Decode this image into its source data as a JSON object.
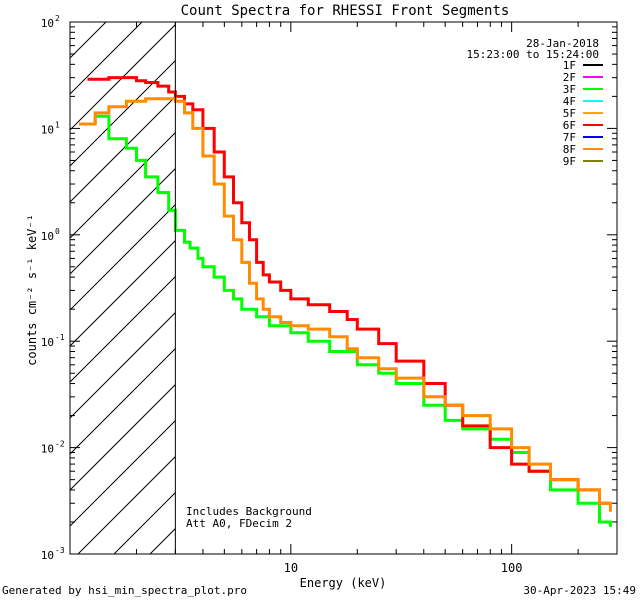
{
  "footer": {
    "generated_by": "Generated by hsi_min_spectra_plot.pro",
    "generated_at": "30-Apr-2023 15:49"
  },
  "chart_data": {
    "type": "line",
    "title": "Count Spectra for RHESSI Front Segments",
    "xlabel": "Energy (keV)",
    "ylabel": "counts cm⁻² s⁻¹ keV⁻¹",
    "xscale": "log",
    "yscale": "log",
    "xlim": [
      1,
      300
    ],
    "ylim": [
      0.001,
      100
    ],
    "x_ticks": [
      {
        "value": 10,
        "label": "10"
      },
      {
        "value": 100,
        "label": "100"
      }
    ],
    "y_ticks": [
      {
        "value": 0.001,
        "base": "10",
        "exp": "-3"
      },
      {
        "value": 0.01,
        "base": "10",
        "exp": "-2"
      },
      {
        "value": 0.1,
        "base": "10",
        "exp": "-1"
      },
      {
        "value": 1,
        "base": "10",
        "exp": "0"
      },
      {
        "value": 10,
        "base": "10",
        "exp": "1"
      },
      {
        "value": 100,
        "base": "10",
        "exp": "2"
      }
    ],
    "date": "28-Jan-2018",
    "time_range": "15:23:00 to 15:24:00",
    "annotations": [
      "Includes Background",
      "Att A0, FDecim 2"
    ],
    "hatched_region": {
      "x_from": 1,
      "x_to": 3,
      "note": "excluded energies"
    },
    "legend_position": "top-right",
    "series": [
      {
        "name": "1F",
        "color": "#000000",
        "x": [],
        "y": []
      },
      {
        "name": "2F",
        "color": "#ff00ff",
        "x": [],
        "y": []
      },
      {
        "name": "3F",
        "color": "#00ff00",
        "x": [
          1.1,
          1.3,
          1.5,
          1.8,
          2.0,
          2.2,
          2.5,
          2.8,
          3.0,
          3.3,
          3.5,
          3.8,
          4.0,
          4.5,
          5.0,
          5.5,
          6.0,
          7.0,
          8.0,
          10.0,
          12.0,
          15.0,
          20.0,
          25.0,
          30.0,
          40.0,
          50.0,
          60.0,
          80.0,
          100.0,
          120.0,
          150.0,
          200.0,
          250.0,
          280.0
        ],
        "y": [
          11,
          13,
          8,
          6.5,
          5.0,
          3.5,
          2.5,
          1.7,
          1.1,
          0.85,
          0.75,
          0.6,
          0.5,
          0.4,
          0.3,
          0.25,
          0.2,
          0.17,
          0.14,
          0.12,
          0.1,
          0.08,
          0.06,
          0.05,
          0.04,
          0.025,
          0.018,
          0.015,
          0.012,
          0.009,
          0.006,
          0.004,
          0.003,
          0.002,
          0.0018
        ]
      },
      {
        "name": "4F",
        "color": "#00ffff",
        "x": [],
        "y": []
      },
      {
        "name": "5F",
        "color": "#ffa500",
        "x": [],
        "y": []
      },
      {
        "name": "6F",
        "color": "#ff0000",
        "x": [
          1.2,
          1.5,
          1.8,
          2.0,
          2.2,
          2.5,
          2.8,
          3.0,
          3.3,
          3.6,
          4.0,
          4.5,
          5.0,
          5.5,
          6.0,
          6.5,
          7.0,
          7.5,
          8.0,
          9.0,
          10.0,
          12.0,
          15.0,
          18.0,
          20.0,
          25.0,
          30.0,
          40.0,
          50.0,
          60.0,
          80.0,
          100.0,
          120.0,
          150.0,
          200.0,
          250.0,
          280.0
        ],
        "y": [
          29,
          30,
          30,
          28,
          27,
          25,
          22,
          20,
          17,
          15,
          10,
          6.0,
          3.5,
          2.0,
          1.3,
          0.9,
          0.55,
          0.42,
          0.36,
          0.3,
          0.25,
          0.22,
          0.19,
          0.16,
          0.13,
          0.095,
          0.065,
          0.04,
          0.025,
          0.016,
          0.01,
          0.007,
          0.006,
          0.005,
          0.004,
          0.003,
          0.003
        ]
      },
      {
        "name": "7F",
        "color": "#0000ff",
        "x": [],
        "y": []
      },
      {
        "name": "8F",
        "color": "#ff8c00",
        "x": [
          1.1,
          1.3,
          1.5,
          1.8,
          2.0,
          2.2,
          2.5,
          2.8,
          3.0,
          3.3,
          3.6,
          4.0,
          4.5,
          5.0,
          5.5,
          6.0,
          6.5,
          7.0,
          7.5,
          8.0,
          9.0,
          10.0,
          12.0,
          15.0,
          18.0,
          20.0,
          25.0,
          30.0,
          40.0,
          50.0,
          60.0,
          80.0,
          100.0,
          120.0,
          150.0,
          200.0,
          250.0,
          280.0
        ],
        "y": [
          11,
          14,
          16,
          18,
          18,
          19,
          19,
          19,
          18,
          14,
          10,
          5.5,
          3.0,
          1.5,
          0.9,
          0.55,
          0.35,
          0.25,
          0.2,
          0.17,
          0.15,
          0.14,
          0.13,
          0.11,
          0.085,
          0.07,
          0.055,
          0.045,
          0.03,
          0.025,
          0.02,
          0.015,
          0.01,
          0.007,
          0.005,
          0.004,
          0.003,
          0.0025
        ]
      },
      {
        "name": "9F",
        "color": "#808000",
        "x": [],
        "y": []
      }
    ]
  }
}
